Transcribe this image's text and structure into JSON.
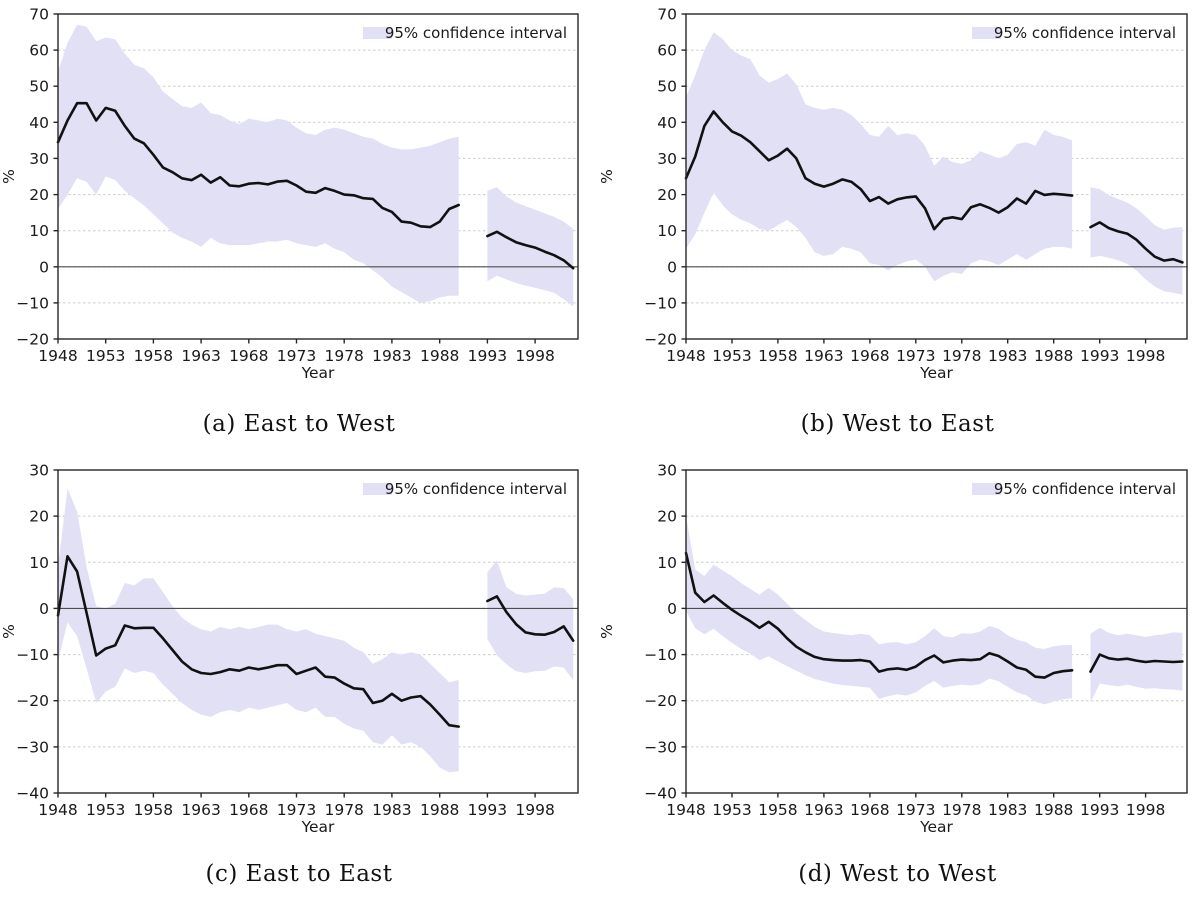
{
  "page": {
    "background": "#ffffff"
  },
  "style": {
    "line_color": "#111111",
    "band_color": "#e1e0f5",
    "grid_color": "#cccccc",
    "zero_line_color": "#4d4d4d",
    "spine_color": "#262626",
    "text_color": "#1a1a1a"
  },
  "chart_data": [
    {
      "type": "line",
      "caption": "(a) East to West",
      "xlabel": "Year",
      "ylabel": "%",
      "legend": "95% confidence interval",
      "legend_position": "upper right",
      "grid": "dashed-horizontal",
      "xlim": [
        1948,
        2002.5
      ],
      "ylim": [
        -20,
        70
      ],
      "x_ticks": [
        1948,
        1953,
        1958,
        1963,
        1968,
        1973,
        1978,
        1983,
        1988,
        1993,
        1998
      ],
      "y_ticks": [
        70,
        60,
        50,
        40,
        30,
        20,
        10,
        0,
        -10,
        -20
      ],
      "zero_line": true,
      "segments": [
        {
          "start_year": 1948,
          "line": [
            34.5,
            40.5,
            45.3,
            45.3,
            40.5,
            44.0,
            43.2,
            39.0,
            35.5,
            34.2,
            31.0,
            27.5,
            26.2,
            24.5,
            24.0,
            25.5,
            23.3,
            24.8,
            22.5,
            22.3,
            23.0,
            23.2,
            22.8,
            23.6,
            23.8,
            22.5,
            20.8,
            20.5,
            21.8,
            21.0,
            20.0,
            19.8,
            19.0,
            18.8,
            16.3,
            15.2,
            12.5,
            12.2,
            11.2,
            11.0,
            12.5,
            16.0,
            17.1
          ],
          "upper": [
            54,
            62,
            67,
            66.5,
            62.5,
            63.5,
            63,
            59,
            56,
            55,
            52.5,
            48.5,
            46.5,
            44.5,
            44,
            45.5,
            42.5,
            42,
            40.5,
            39.5,
            41,
            40.5,
            40,
            41,
            40.5,
            38.5,
            37,
            36.5,
            38,
            38.5,
            38,
            37,
            36,
            35.5,
            34,
            33,
            32.5,
            32.5,
            33,
            33.5,
            34.5,
            35.5,
            36
          ],
          "lower": [
            16,
            20,
            24.5,
            23.5,
            20,
            25,
            24,
            21,
            19,
            17,
            14.5,
            12,
            9.5,
            8,
            7,
            5.5,
            8,
            6.5,
            6,
            6,
            6,
            6.5,
            7,
            7,
            7.5,
            6.5,
            6,
            5.5,
            6.5,
            5,
            4,
            2,
            1,
            -1,
            -3,
            -5.5,
            -7,
            -8.5,
            -10,
            -9.5,
            -8.5,
            -8,
            -8
          ]
        },
        {
          "start_year": 1993,
          "line": [
            8.5,
            9.7,
            8.2,
            6.8,
            6.0,
            5.3,
            4.2,
            3.2,
            1.8,
            -0.4
          ],
          "upper": [
            21,
            22,
            19.5,
            17.8,
            16.8,
            15.8,
            14.8,
            13.8,
            12.5,
            10.5
          ],
          "lower": [
            -4,
            -2.5,
            -3.5,
            -4.5,
            -5.2,
            -5.8,
            -6.5,
            -7.2,
            -9,
            -11
          ]
        }
      ]
    },
    {
      "type": "line",
      "caption": "(b) West to East",
      "xlabel": "Year",
      "ylabel": "%",
      "legend": "95% confidence interval",
      "legend_position": "upper right",
      "grid": "dashed-horizontal",
      "xlim": [
        1948,
        2002.5
      ],
      "ylim": [
        -20,
        70
      ],
      "x_ticks": [
        1948,
        1953,
        1958,
        1963,
        1968,
        1973,
        1978,
        1983,
        1988,
        1993,
        1998
      ],
      "y_ticks": [
        70,
        60,
        50,
        40,
        30,
        20,
        10,
        0,
        -10,
        -20
      ],
      "zero_line": true,
      "segments": [
        {
          "start_year": 1948,
          "line": [
            24.5,
            30.5,
            39,
            43,
            40,
            37.5,
            36.3,
            34.5,
            32,
            29.5,
            30.8,
            32.7,
            30,
            24.5,
            23,
            22.2,
            23,
            24.2,
            23.5,
            21.5,
            18.2,
            19.3,
            17.5,
            18.7,
            19.2,
            19.5,
            16.2,
            10.4,
            13.3,
            13.7,
            13.2,
            16.5,
            17.3,
            16.3,
            15,
            16.5,
            18.9,
            17.5,
            21,
            19.9,
            20.2,
            20,
            19.7
          ],
          "upper": [
            47,
            53,
            60,
            65,
            63,
            60,
            58.5,
            57.5,
            53,
            51,
            52,
            53.5,
            50.5,
            45,
            44,
            43.5,
            44,
            43.5,
            42,
            39.5,
            36.5,
            36,
            39,
            36.5,
            37,
            36.5,
            33.5,
            28,
            30.5,
            29,
            28.5,
            29.5,
            32,
            31,
            30,
            31,
            34,
            34.5,
            33.5,
            38,
            36.5,
            36,
            35
          ],
          "lower": [
            5,
            9,
            15,
            20.5,
            17,
            14.5,
            13,
            12,
            10.5,
            10,
            11.5,
            13,
            11,
            8,
            4,
            3,
            3.5,
            5.5,
            5,
            4,
            1,
            0.5,
            -1,
            0.5,
            1.5,
            2,
            0,
            -4,
            -2.5,
            -1.5,
            -2,
            1,
            2,
            1.5,
            0.5,
            2,
            3.5,
            2,
            3.5,
            5,
            5.5,
            5.5,
            5
          ]
        },
        {
          "start_year": 1992,
          "line": [
            11,
            12.3,
            10.7,
            9.8,
            9.2,
            7.5,
            5.0,
            2.8,
            1.7,
            2.1,
            1.2
          ],
          "upper": [
            22,
            21.5,
            19.8,
            18.8,
            17.8,
            16.2,
            14,
            11.5,
            10.3,
            10.8,
            11
          ],
          "lower": [
            2.5,
            3,
            2.5,
            1.8,
            0.8,
            -1,
            -3.5,
            -5.5,
            -6.8,
            -7.2,
            -7.8
          ]
        }
      ]
    },
    {
      "type": "line",
      "caption": "(c) East to East",
      "xlabel": "Year",
      "ylabel": "%",
      "legend": "95% confidence interval",
      "legend_position": "upper right",
      "grid": "dashed-horizontal",
      "xlim": [
        1948,
        2002.5
      ],
      "ylim": [
        -40,
        30
      ],
      "x_ticks": [
        1948,
        1953,
        1958,
        1963,
        1968,
        1973,
        1978,
        1983,
        1988,
        1993,
        1998
      ],
      "y_ticks": [
        30,
        20,
        10,
        0,
        -10,
        -20,
        -30,
        -40
      ],
      "zero_line": true,
      "segments": [
        {
          "start_year": 1948,
          "line": [
            -1.5,
            11.3,
            8,
            -1,
            -10.2,
            -8.7,
            -8,
            -3.7,
            -4.3,
            -4.2,
            -4.2,
            -6.5,
            -9,
            -11.5,
            -13.2,
            -14,
            -14.2,
            -13.8,
            -13.2,
            -13.5,
            -12.8,
            -13.2,
            -12.8,
            -12.3,
            -12.3,
            -14.2,
            -13.5,
            -12.8,
            -14.8,
            -15,
            -16.3,
            -17.3,
            -17.5,
            -20.5,
            -20,
            -18.5,
            -20,
            -19.3,
            -19,
            -20.8,
            -23,
            -25.3,
            -25.6
          ],
          "upper": [
            9,
            26,
            21,
            9,
            0.5,
            0,
            1,
            5.5,
            5,
            6.5,
            6.5,
            3.5,
            0.5,
            -2,
            -3.5,
            -4.5,
            -5,
            -4,
            -4.5,
            -4,
            -4.5,
            -4,
            -3.5,
            -3.5,
            -4.5,
            -5,
            -4.5,
            -5.5,
            -6,
            -6.5,
            -7,
            -8.5,
            -9.5,
            -12,
            -11,
            -9.5,
            -10,
            -9.5,
            -10,
            -12,
            -14,
            -16,
            -15.5
          ],
          "lower": [
            -11.5,
            -3,
            -6,
            -13,
            -20.5,
            -18,
            -17,
            -13,
            -14,
            -13.5,
            -14,
            -16.5,
            -18.5,
            -20.5,
            -22,
            -23,
            -23.5,
            -22.5,
            -22,
            -22.5,
            -21.5,
            -22,
            -21.5,
            -21,
            -20.5,
            -22,
            -22.5,
            -21.5,
            -23.5,
            -23.5,
            -25,
            -26,
            -26.5,
            -29,
            -29.5,
            -27.5,
            -29.5,
            -29,
            -30,
            -32,
            -34.5,
            -35.5,
            -35.3
          ]
        },
        {
          "start_year": 1993,
          "line": [
            1.6,
            2.6,
            -0.8,
            -3.4,
            -5.2,
            -5.6,
            -5.7,
            -5.1,
            -3.9,
            -7.0
          ],
          "upper": [
            7.8,
            10.4,
            4.6,
            3.2,
            2.8,
            3.0,
            3.2,
            4.6,
            4.4,
            2.0
          ],
          "lower": [
            -6.6,
            -10.2,
            -12.1,
            -13.6,
            -14.0,
            -13.6,
            -13.5,
            -12.6,
            -12.8,
            -15.6
          ]
        }
      ]
    },
    {
      "type": "line",
      "caption": "(d) West to West",
      "xlabel": "Year",
      "ylabel": "%",
      "legend": "95% confidence interval",
      "legend_position": "upper right",
      "grid": "dashed-horizontal",
      "xlim": [
        1948,
        2002.5
      ],
      "ylim": [
        -40,
        30
      ],
      "x_ticks": [
        1948,
        1953,
        1958,
        1963,
        1968,
        1973,
        1978,
        1983,
        1988,
        1993,
        1998
      ],
      "y_ticks": [
        30,
        20,
        10,
        0,
        -10,
        -20,
        -30,
        -40
      ],
      "zero_line": true,
      "segments": [
        {
          "start_year": 1948,
          "line": [
            12,
            3.4,
            1.4,
            2.8,
            1.2,
            -0.3,
            -1.6,
            -2.8,
            -4.2,
            -2.9,
            -4.4,
            -6.5,
            -8.3,
            -9.5,
            -10.5,
            -11,
            -11.2,
            -11.3,
            -11.3,
            -11.2,
            -11.5,
            -13.7,
            -13.2,
            -13,
            -13.3,
            -12.6,
            -11.2,
            -10.2,
            -11.7,
            -11.3,
            -11.1,
            -11.2,
            -11,
            -9.7,
            -10.3,
            -11.5,
            -12.8,
            -13.3,
            -14.8,
            -15,
            -14,
            -13.6,
            -13.4
          ],
          "upper": [
            20,
            8.5,
            7,
            9.5,
            8.2,
            7,
            5.5,
            4.2,
            3,
            4.5,
            3,
            1,
            -1,
            -2.5,
            -4,
            -5,
            -5.3,
            -5.6,
            -5.8,
            -5.5,
            -5.8,
            -7.8,
            -7.4,
            -7.3,
            -7.8,
            -7.3,
            -6,
            -4.3,
            -6,
            -6.3,
            -5.4,
            -5.5,
            -5,
            -3.8,
            -4.4,
            -5.8,
            -6.8,
            -7.3,
            -8.5,
            -8.8,
            -8.2,
            -8,
            -7.9
          ],
          "lower": [
            -0.5,
            -4.3,
            -5.6,
            -4.4,
            -6,
            -7.5,
            -8.8,
            -9.8,
            -11.2,
            -10.4,
            -11.5,
            -12.5,
            -13.5,
            -14.5,
            -15.3,
            -15.8,
            -16.3,
            -16.6,
            -16.8,
            -17,
            -17.2,
            -19.6,
            -19,
            -18.6,
            -18.9,
            -18.2,
            -16.8,
            -15.7,
            -17.2,
            -16.8,
            -16.5,
            -16.7,
            -16.4,
            -15.2,
            -15.8,
            -17,
            -18.2,
            -18.8,
            -20.2,
            -20.8,
            -20.2,
            -19.7,
            -19.5
          ]
        },
        {
          "start_year": 1992,
          "line": [
            -13.7,
            -10.0,
            -10.8,
            -11.1,
            -10.9,
            -11.3,
            -11.6,
            -11.4,
            -11.5,
            -11.6,
            -11.5
          ],
          "upper": [
            -5.5,
            -4.2,
            -5.3,
            -5.8,
            -5.5,
            -5.8,
            -6.2,
            -5.8,
            -5.6,
            -5.2,
            -5.3
          ],
          "lower": [
            -20.3,
            -16.3,
            -16.6,
            -16.9,
            -16.5,
            -17,
            -17.4,
            -17.3,
            -17.5,
            -17.6,
            -17.8
          ]
        }
      ]
    }
  ]
}
